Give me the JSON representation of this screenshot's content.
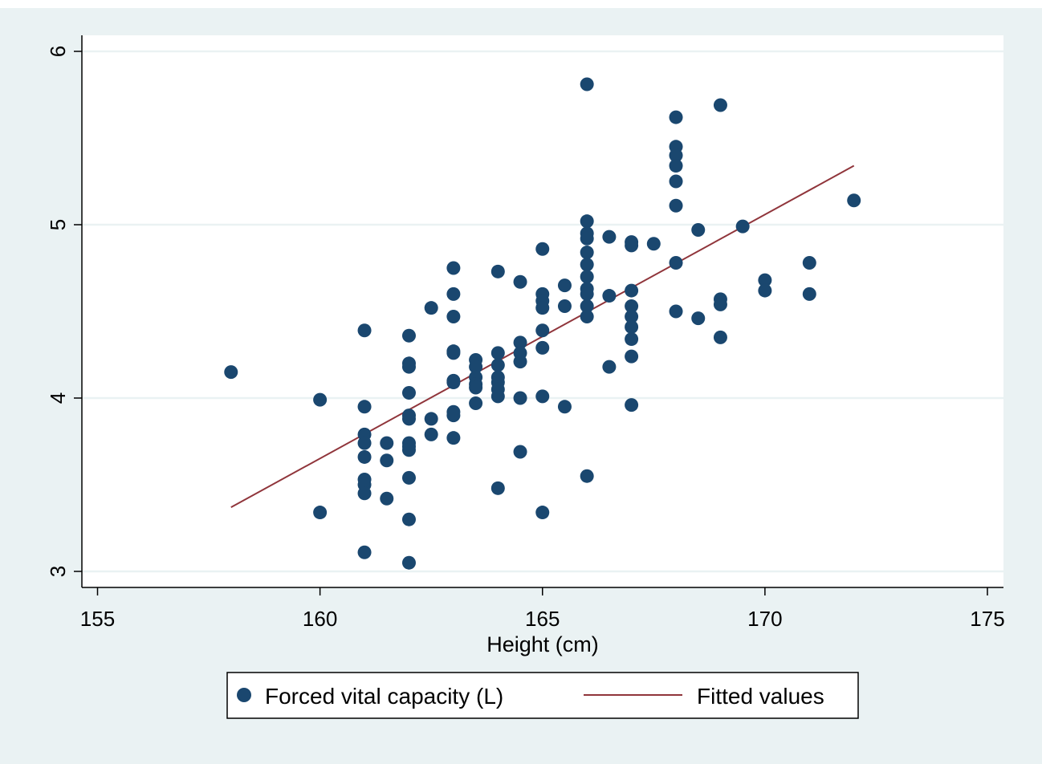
{
  "colors": {
    "outer_background": "#eaf2f3",
    "plot_background": "#ffffff",
    "gridline": "#eaf2f3",
    "point": "#1a476f",
    "fit_line": "#90353b",
    "axis": "#000000"
  },
  "chart_data": {
    "type": "scatter",
    "title": "",
    "xlabel": "Height (cm)",
    "ylabel": "",
    "xlim": [
      155,
      175
    ],
    "ylim": [
      3,
      6
    ],
    "x_ticks": [
      155,
      160,
      165,
      170,
      175
    ],
    "y_ticks": [
      3,
      4,
      5,
      6
    ],
    "grid": "horizontal",
    "legend_position": "bottom",
    "series": [
      {
        "name": "Forced vital capacity (L)",
        "type": "scatter",
        "points": [
          [
            158,
            4.15
          ],
          [
            160,
            3.99
          ],
          [
            160,
            3.34
          ],
          [
            161,
            4.39
          ],
          [
            161,
            3.95
          ],
          [
            161,
            3.79
          ],
          [
            161,
            3.74
          ],
          [
            161,
            3.66
          ],
          [
            161,
            3.53
          ],
          [
            161,
            3.5
          ],
          [
            161,
            3.45
          ],
          [
            161,
            3.11
          ],
          [
            161.5,
            3.74
          ],
          [
            161.5,
            3.64
          ],
          [
            161.5,
            3.42
          ],
          [
            162,
            4.36
          ],
          [
            162,
            4.2
          ],
          [
            162,
            4.18
          ],
          [
            162,
            4.03
          ],
          [
            162,
            3.9
          ],
          [
            162,
            3.88
          ],
          [
            162,
            3.74
          ],
          [
            162,
            3.72
          ],
          [
            162,
            3.7
          ],
          [
            162,
            3.54
          ],
          [
            162,
            3.3
          ],
          [
            162,
            3.05
          ],
          [
            162.5,
            4.52
          ],
          [
            162.5,
            3.88
          ],
          [
            162.5,
            3.79
          ],
          [
            163,
            4.75
          ],
          [
            163,
            4.6
          ],
          [
            163,
            4.47
          ],
          [
            163,
            4.27
          ],
          [
            163,
            4.26
          ],
          [
            163,
            4.1
          ],
          [
            163,
            4.09
          ],
          [
            163,
            3.92
          ],
          [
            163,
            3.9
          ],
          [
            163,
            3.77
          ],
          [
            163.5,
            4.22
          ],
          [
            163.5,
            4.18
          ],
          [
            163.5,
            4.12
          ],
          [
            163.5,
            4.08
          ],
          [
            163.5,
            4.06
          ],
          [
            163.5,
            3.97
          ],
          [
            164,
            4.73
          ],
          [
            164,
            4.26
          ],
          [
            164,
            4.19
          ],
          [
            164,
            4.12
          ],
          [
            164,
            4.09
          ],
          [
            164,
            4.05
          ],
          [
            164,
            4.01
          ],
          [
            164,
            3.48
          ],
          [
            164.5,
            4.67
          ],
          [
            164.5,
            4.32
          ],
          [
            164.5,
            4.26
          ],
          [
            164.5,
            4.21
          ],
          [
            164.5,
            4.0
          ],
          [
            164.5,
            3.69
          ],
          [
            165,
            4.86
          ],
          [
            165,
            4.6
          ],
          [
            165,
            4.56
          ],
          [
            165,
            4.52
          ],
          [
            165,
            4.39
          ],
          [
            165,
            4.29
          ],
          [
            165,
            4.01
          ],
          [
            165,
            3.34
          ],
          [
            165.5,
            4.65
          ],
          [
            165.5,
            4.53
          ],
          [
            165.5,
            3.95
          ],
          [
            166,
            5.81
          ],
          [
            166,
            5.02
          ],
          [
            166,
            4.95
          ],
          [
            166,
            4.92
          ],
          [
            166,
            4.84
          ],
          [
            166,
            4.77
          ],
          [
            166,
            4.7
          ],
          [
            166,
            4.63
          ],
          [
            166,
            4.6
          ],
          [
            166,
            4.53
          ],
          [
            166,
            4.47
          ],
          [
            166,
            3.55
          ],
          [
            166.5,
            4.93
          ],
          [
            166.5,
            4.59
          ],
          [
            166.5,
            4.18
          ],
          [
            167,
            4.9
          ],
          [
            167,
            4.88
          ],
          [
            167,
            4.62
          ],
          [
            167,
            4.53
          ],
          [
            167,
            4.47
          ],
          [
            167,
            4.41
          ],
          [
            167,
            4.34
          ],
          [
            167,
            4.24
          ],
          [
            167,
            3.96
          ],
          [
            167.5,
            4.89
          ],
          [
            168,
            5.62
          ],
          [
            168,
            5.45
          ],
          [
            168,
            5.4
          ],
          [
            168,
            5.34
          ],
          [
            168,
            5.25
          ],
          [
            168,
            5.11
          ],
          [
            168,
            4.78
          ],
          [
            168,
            4.5
          ],
          [
            168.5,
            4.97
          ],
          [
            168.5,
            4.46
          ],
          [
            169,
            5.69
          ],
          [
            169,
            4.57
          ],
          [
            169,
            4.54
          ],
          [
            169,
            4.35
          ],
          [
            169.5,
            4.99
          ],
          [
            170,
            4.68
          ],
          [
            170,
            4.62
          ],
          [
            171,
            4.78
          ],
          [
            171,
            4.6
          ],
          [
            172,
            5.14
          ]
        ]
      },
      {
        "name": "Fitted values",
        "type": "line",
        "points": [
          [
            158,
            3.37
          ],
          [
            172,
            5.34
          ]
        ]
      }
    ]
  },
  "axes": {
    "x_tick_labels": [
      "155",
      "160",
      "165",
      "170",
      "175"
    ],
    "y_tick_labels": [
      "3",
      "4",
      "5",
      "6"
    ]
  },
  "legend": {
    "items": [
      "Forced vital capacity (L)",
      "Fitted values"
    ]
  }
}
